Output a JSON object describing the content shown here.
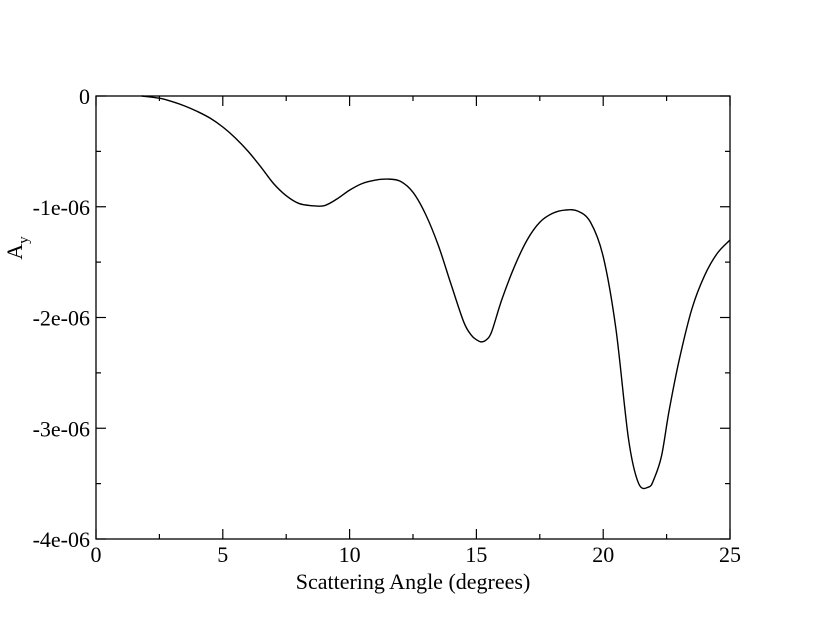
{
  "chart_data": {
    "type": "line",
    "title": "",
    "xlabel": "Scattering Angle (degrees)",
    "ylabel": {
      "main": "A",
      "sub": "y"
    },
    "xlim": [
      0,
      25
    ],
    "ylim": [
      -4e-06,
      0
    ],
    "x_ticks": [
      {
        "value": 0,
        "label": "0"
      },
      {
        "value": 5,
        "label": "5"
      },
      {
        "value": 10,
        "label": "10"
      },
      {
        "value": 15,
        "label": "15"
      },
      {
        "value": 20,
        "label": "20"
      },
      {
        "value": 25,
        "label": "25"
      }
    ],
    "y_ticks": [
      {
        "value": 0,
        "label": "0"
      },
      {
        "value": -1e-06,
        "label": "-1e-06"
      },
      {
        "value": -2e-06,
        "label": "-2e-06"
      },
      {
        "value": -3e-06,
        "label": "-3e-06"
      },
      {
        "value": -4e-06,
        "label": "-4e-06"
      }
    ],
    "grid": false,
    "series": [
      {
        "color": "#000000",
        "x": [
          1.8,
          2.5,
          3.0,
          3.5,
          4.0,
          4.5,
          5.0,
          5.5,
          6.0,
          6.5,
          7.0,
          7.5,
          8.0,
          8.5,
          9.0,
          9.5,
          10.0,
          10.5,
          11.0,
          11.5,
          12.0,
          12.5,
          13.0,
          13.5,
          14.0,
          14.5,
          14.8,
          15.0,
          15.2,
          15.4,
          15.6,
          16.0,
          16.5,
          17.0,
          17.5,
          18.0,
          18.5,
          19.0,
          19.5,
          20.0,
          20.5,
          21.0,
          21.4,
          21.8,
          22.0,
          22.3,
          22.6,
          23.0,
          23.5,
          24.0,
          24.5,
          25.0
        ],
        "y": [
          0,
          -2e-08,
          -5e-08,
          -9e-08,
          -1.4e-07,
          -2e-07,
          -2.8e-07,
          -3.8e-07,
          -5e-07,
          -6.4e-07,
          -7.9e-07,
          -9e-07,
          -9.7e-07,
          -9.9e-07,
          -9.9e-07,
          -9.3e-07,
          -8.5e-07,
          -7.9e-07,
          -7.6e-07,
          -7.5e-07,
          -7.7e-07,
          -8.7e-07,
          -1.07e-06,
          -1.35e-06,
          -1.7e-06,
          -2.04e-06,
          -2.16e-06,
          -2.2e-06,
          -2.22e-06,
          -2.2e-06,
          -2.13e-06,
          -1.84e-06,
          -1.54e-06,
          -1.3e-06,
          -1.14e-06,
          -1.06e-06,
          -1.03e-06,
          -1.04e-06,
          -1.14e-06,
          -1.45e-06,
          -2.1e-06,
          -3.1e-06,
          -3.5e-06,
          -3.53e-06,
          -3.46e-06,
          -3.25e-06,
          -2.84e-06,
          -2.38e-06,
          -1.92e-06,
          -1.62e-06,
          -1.42e-06,
          -1.3e-06
        ]
      }
    ]
  }
}
